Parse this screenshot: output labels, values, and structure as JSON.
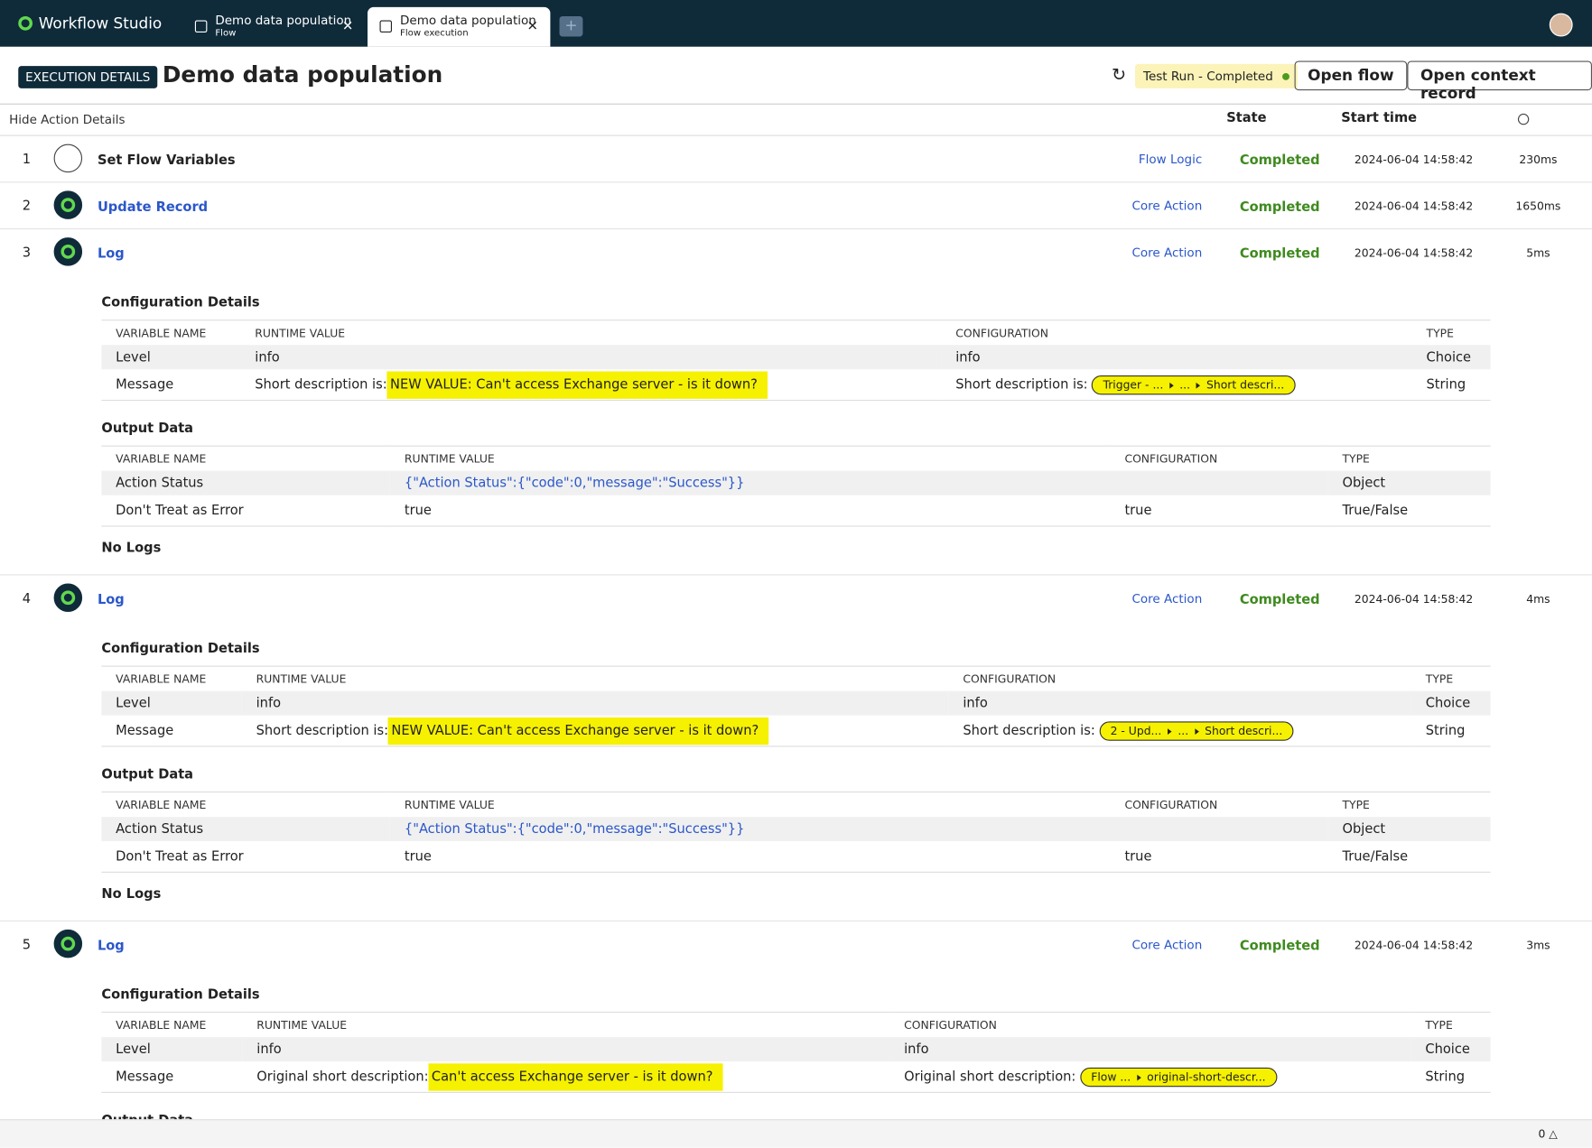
{
  "app": {
    "name": "Workflow Studio"
  },
  "tabs": [
    {
      "title": "Demo data population",
      "subtitle": "Flow"
    },
    {
      "title": "Demo data population",
      "subtitle": "Flow execution"
    }
  ],
  "header": {
    "badge": "EXECUTION DETAILS",
    "title": "Demo data population",
    "status": "Test Run - Completed",
    "buttons": [
      "Open flow",
      "Open context record"
    ]
  },
  "list_header": {
    "toggle": "Hide Action Details",
    "columns": [
      "State",
      "Start time"
    ]
  },
  "details_columns": [
    "VARIABLE NAME",
    "RUNTIME VALUE",
    "CONFIGURATION",
    "TYPE"
  ],
  "actions": [
    {
      "number": "1",
      "name": "Set Flow Variables",
      "link": false,
      "category": "Flow Logic",
      "state": "Completed",
      "start_time": "2024-06-04 14:58:42",
      "duration": "230ms"
    },
    {
      "number": "2",
      "name": "Update Record",
      "link": true,
      "category": "Core Action",
      "state": "Completed",
      "start_time": "2024-06-04 14:58:42",
      "duration": "1650ms"
    },
    {
      "number": "3",
      "name": "Log",
      "link": true,
      "category": "Core Action",
      "state": "Completed",
      "start_time": "2024-06-04 14:58:42",
      "duration": "5ms",
      "sections": [
        {
          "title": "Configuration Details",
          "rows": [
            [
              "Level",
              "info",
              "info",
              "Choice"
            ],
            [
              "Message",
              {
                "text": "Short description is:",
                "highlight": "NEW VALUE: Can't access Exchange server - is it down?"
              },
              {
                "text": "Short description is:",
                "pill": [
                  "Trigger - ...",
                  "...",
                  "Short descri..."
                ]
              },
              "String"
            ]
          ]
        },
        {
          "title": "Output Data",
          "rows": [
            [
              "Action Status",
              {
                "link": "{\"Action Status\":{\"code\":0,\"message\":\"Success\"}}"
              },
              "",
              "Object"
            ],
            [
              "Don't Treat as Error",
              "true",
              "true",
              "True/False"
            ]
          ]
        }
      ],
      "logs": "No Logs"
    },
    {
      "number": "4",
      "name": "Log",
      "link": true,
      "category": "Core Action",
      "state": "Completed",
      "start_time": "2024-06-04 14:58:42",
      "duration": "4ms",
      "sections": [
        {
          "title": "Configuration Details",
          "rows": [
            [
              "Level",
              "info",
              "info",
              "Choice"
            ],
            [
              "Message",
              {
                "text": "Short description is:",
                "highlight": "NEW VALUE: Can't access Exchange server - is it down?"
              },
              {
                "text": "Short description is:",
                "pill": [
                  "2 - Upd...",
                  "...",
                  "Short descri..."
                ]
              },
              "String"
            ]
          ]
        },
        {
          "title": "Output Data",
          "rows": [
            [
              "Action Status",
              {
                "link": "{\"Action Status\":{\"code\":0,\"message\":\"Success\"}}"
              },
              "",
              "Object"
            ],
            [
              "Don't Treat as Error",
              "true",
              "true",
              "True/False"
            ]
          ]
        }
      ],
      "logs": "No Logs"
    },
    {
      "number": "5",
      "name": "Log",
      "link": true,
      "category": "Core Action",
      "state": "Completed",
      "start_time": "2024-06-04 14:58:42",
      "duration": "3ms",
      "sections": [
        {
          "title": "Configuration Details",
          "rows": [
            [
              "Level",
              "info",
              "info",
              "Choice"
            ],
            [
              "Message",
              {
                "text": "Original short description:",
                "highlight": "Can't access Exchange server - is it down?"
              },
              {
                "text": "Original short description:",
                "pill": [
                  "Flow ...",
                  "original-short-descr..."
                ]
              },
              "String"
            ]
          ]
        },
        {
          "title": "Output Data",
          "rows": []
        }
      ]
    }
  ],
  "footer": {
    "count": "0"
  }
}
